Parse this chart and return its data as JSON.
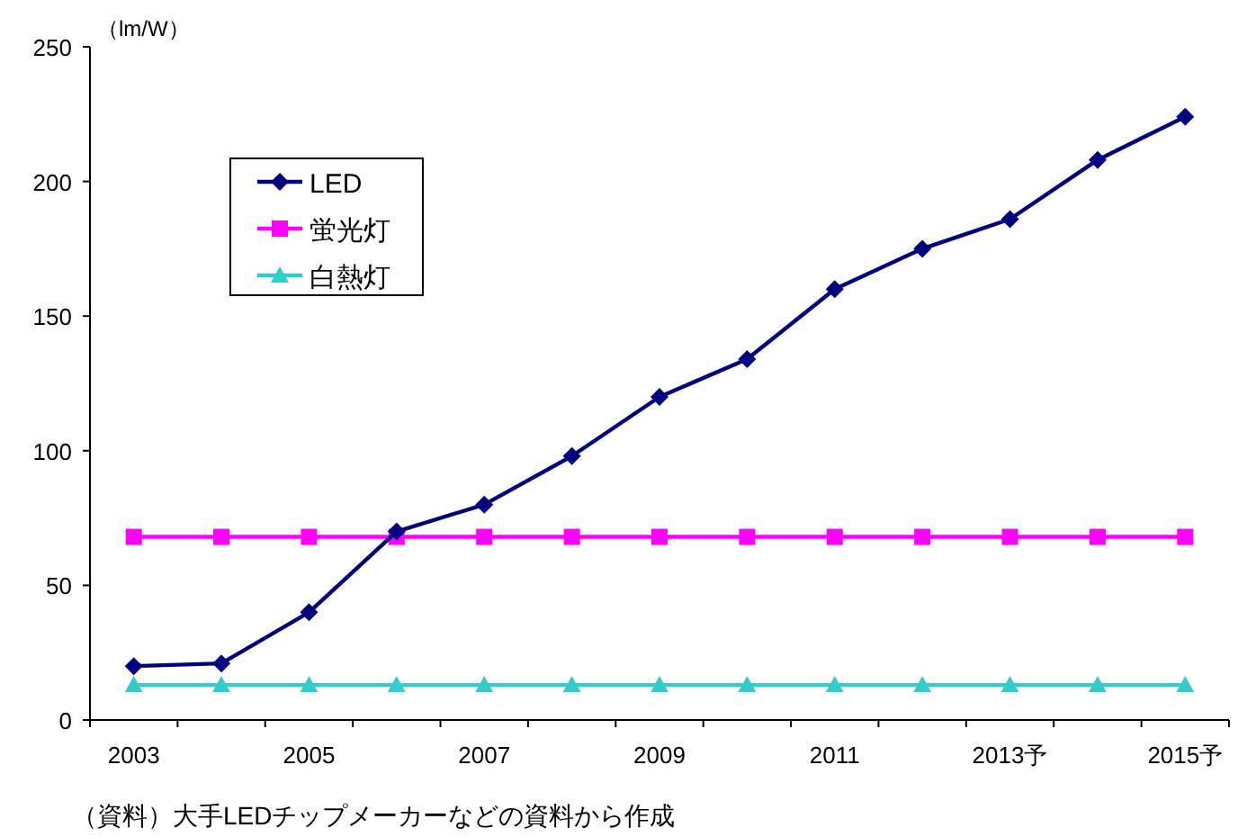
{
  "chart_data": {
    "type": "line",
    "ylabel": "（lm/W）",
    "categories": [
      "2003",
      null,
      "2005",
      null,
      "2007",
      null,
      "2009",
      null,
      "2011",
      null,
      "2013予",
      null,
      "2015予"
    ],
    "series": [
      {
        "name": "LED",
        "color": "#000080",
        "marker": "diamond",
        "values": [
          20,
          21,
          40,
          70,
          80,
          98,
          120,
          134,
          160,
          175,
          186,
          208,
          224
        ]
      },
      {
        "name": "蛍光灯",
        "color": "#ff00ff",
        "marker": "square",
        "values": [
          68,
          68,
          68,
          68,
          68,
          68,
          68,
          68,
          68,
          68,
          68,
          68,
          68
        ]
      },
      {
        "name": "白熱灯",
        "color": "#33cccc",
        "marker": "triangle",
        "values": [
          13,
          13,
          13,
          13,
          13,
          13,
          13,
          13,
          13,
          13,
          13,
          13,
          13
        ]
      }
    ],
    "ylim": [
      0,
      250
    ],
    "yticks": [
      0,
      50,
      100,
      150,
      200,
      250
    ],
    "grid": false,
    "legend": "top left",
    "annotations": [
      "（資料）大手LEDチップメーカーなどの資料から作成"
    ]
  }
}
